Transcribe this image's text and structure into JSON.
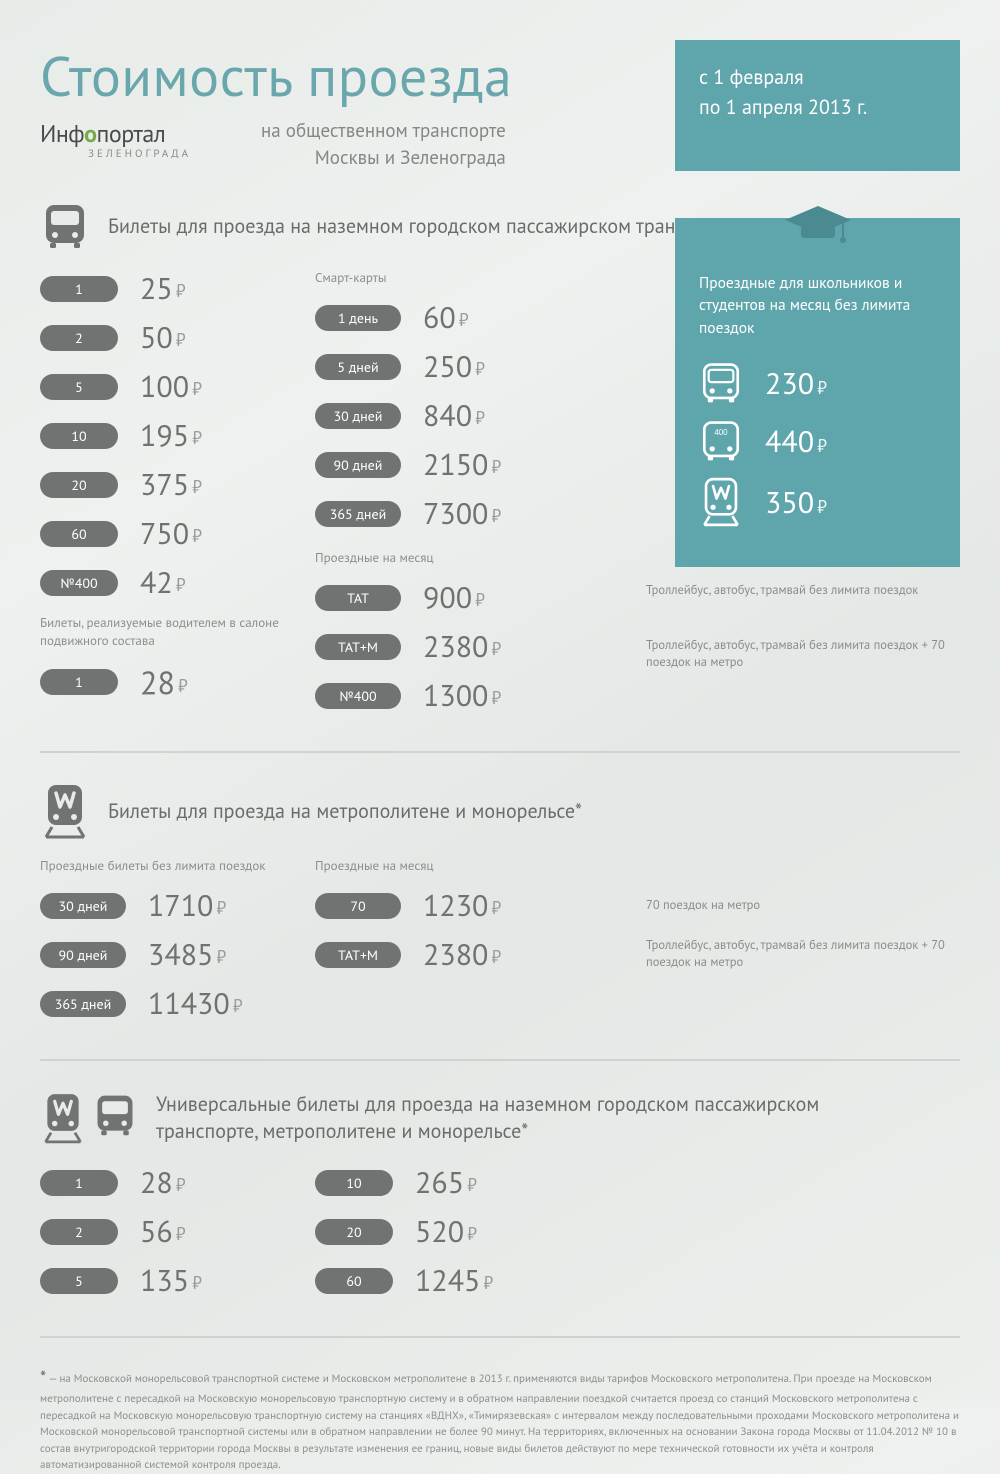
{
  "colors": {
    "accent": "#5fa5ac",
    "accent_title": "#6aa7ad",
    "pill": "#707371",
    "text": "#6f7370",
    "muted": "#8c8e8c",
    "logo_green": "#7aa94a",
    "divider": "#cfd2d0",
    "bg_from": "#e8ece9",
    "bg_to": "#ecefec"
  },
  "header": {
    "title": "Стоимость проезда",
    "subtitle_line1": "на общественном транспорте",
    "subtitle_line2": "Москвы и Зеленограда",
    "logo_part1": "Инф",
    "logo_green": "о",
    "logo_part2": "портал",
    "logo_sub": "ЗЕЛЕНОГРАДА",
    "date_line1": "с 1 февраля",
    "date_line2": "по 1 апреля 2013 г."
  },
  "ruble": "₽",
  "section1": {
    "title": "Билеты для проезда на наземном городском пассажирском транспорте",
    "tickets": [
      {
        "label": "1",
        "price": "25"
      },
      {
        "label": "2",
        "price": "50"
      },
      {
        "label": "5",
        "price": "100"
      },
      {
        "label": "10",
        "price": "195"
      },
      {
        "label": "20",
        "price": "375"
      },
      {
        "label": "60",
        "price": "750"
      },
      {
        "label": "№400",
        "price": "42"
      }
    ],
    "driver_note": "Билеты, реализуемые водителем в салоне подвижного состава",
    "driver": {
      "label": "1",
      "price": "28"
    },
    "smart_head": "Смарт-карты",
    "smart": [
      {
        "label": "1 день",
        "price": "60"
      },
      {
        "label": "5 дней",
        "price": "250"
      },
      {
        "label": "30 дней",
        "price": "840"
      },
      {
        "label": "90 дней",
        "price": "2150"
      },
      {
        "label": "365 дней",
        "price": "7300"
      }
    ],
    "monthly_head": "Проездные на месяц",
    "monthly": [
      {
        "label": "ТАТ",
        "price": "900",
        "note": "Троллейбус, автобус, трамвай без лимита поездок"
      },
      {
        "label": "ТАТ+М",
        "price": "2380",
        "note": "Троллейбус, автобус, трамвай без лимита поездок + 70 поездок на метро"
      },
      {
        "label": "№400",
        "price": "1300"
      }
    ]
  },
  "student": {
    "title": "Проездные для школьников и студентов на месяц без лимита поездок",
    "items": [
      {
        "icon": "bus",
        "price": "230"
      },
      {
        "icon": "bus400",
        "price": "440"
      },
      {
        "icon": "metro",
        "price": "350"
      }
    ]
  },
  "section2": {
    "title": "Билеты для проезда на метрополитене и монорельсе*",
    "unlimited_head": "Проездные билеты без лимита поездок",
    "unlimited": [
      {
        "label": "30 дней",
        "price": "1710"
      },
      {
        "label": "90 дней",
        "price": "3485"
      },
      {
        "label": "365 дней",
        "price": "11430"
      }
    ],
    "monthly_head": "Проездные на месяц",
    "monthly": [
      {
        "label": "70",
        "price": "1230",
        "note": "70 поездок на метро"
      },
      {
        "label": "ТАТ+М",
        "price": "2380",
        "note": "Троллейбус, автобус, трамвай без лимита поездок + 70 поездок на метро"
      }
    ]
  },
  "section3": {
    "title": "Универсальные билеты для проезда на наземном городском пассажирском транспорте, метрополитене и монорельсе*",
    "left": [
      {
        "label": "1",
        "price": "28"
      },
      {
        "label": "2",
        "price": "56"
      },
      {
        "label": "5",
        "price": "135"
      }
    ],
    "right": [
      {
        "label": "10",
        "price": "265"
      },
      {
        "label": "20",
        "price": "520"
      },
      {
        "label": "60",
        "price": "1245"
      }
    ]
  },
  "footnote": "— на Московской монорельсовой транспортной системе и Московском метрополитене в 2013 г. применяются виды тарифов Московского метрополитена. При проезде на Московском метрополитене с пересадкой на Московскую монорельсовую транспортную систему и в обратном направлении поездкой считается проезд со станций Московского метрополитена с пересадкой на Московскую монорельсовую транспортную систему на станциях «ВДНХ», «Тимирязевская» с интервалом между последовательными проходами Московского метрополитена и Московской монорельсовой транспортной системы или в обратном направлении не более 90 минут. На территориях, включенных на основании Закона города Москвы от 11.04.2012 № 10 в состав внутригородской территории города Москвы в результате изменения ее границ, новые виды билетов действуют по мере технической готовности их учёта и контроля автоматизированной системой контроля проезда.",
  "star": "*"
}
